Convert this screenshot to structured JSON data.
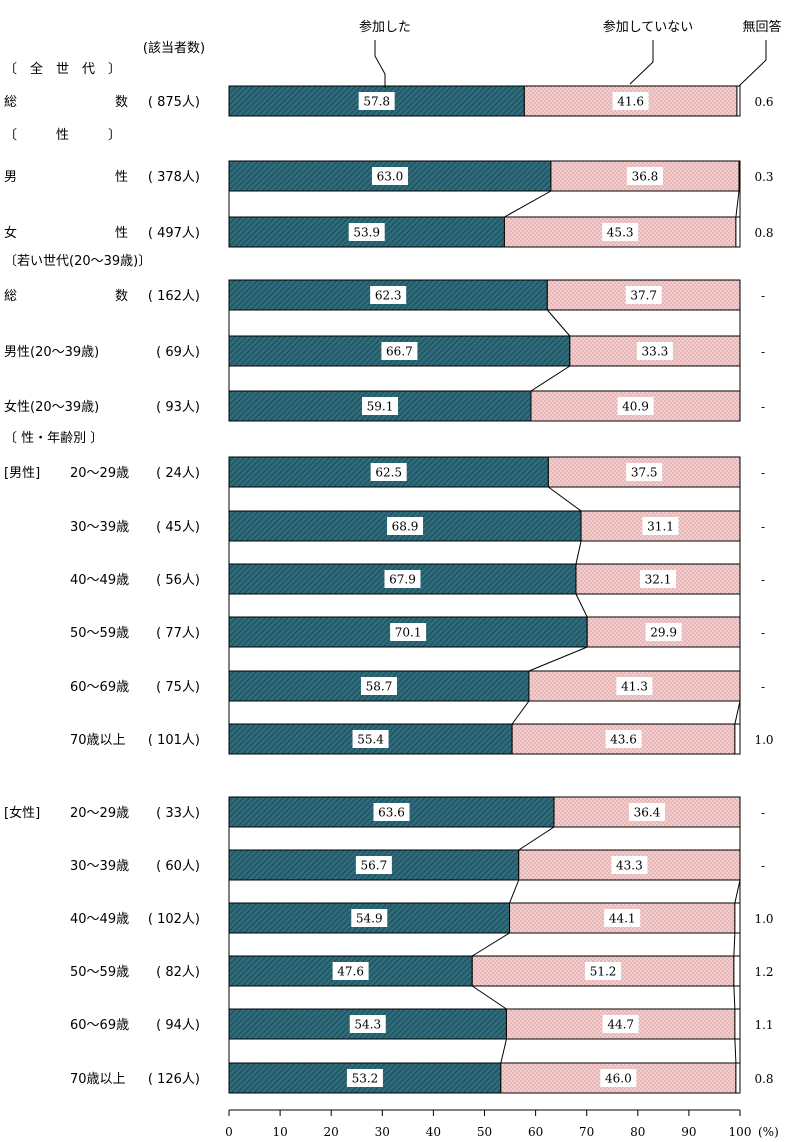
{
  "chart_data": {
    "type": "bar",
    "stacked": "percent",
    "legend": {
      "participated": "参加した",
      "not_participated": "参加していない",
      "no_answer": "無回答"
    },
    "count_header": "(該当者数)",
    "percent_unit": "(%)",
    "xlim": [
      0,
      100
    ],
    "x_ticks": [
      0,
      10,
      20,
      30,
      40,
      50,
      60,
      70,
      80,
      90,
      100
    ],
    "no_answer_dash": "-",
    "colors": {
      "participated": "#2f6b7a",
      "not_participated": "#f6cccc",
      "no_answer": "#ffffff",
      "border": "#000000"
    },
    "sections": [
      {
        "id": "all",
        "header": "〔　全　世　代　〕",
        "rows": [
          {
            "id": "all-total",
            "label_left": "総",
            "label_right": "数",
            "count": "( 875人)",
            "values": [
              57.8,
              41.6,
              0.6
            ],
            "labels": [
              "57.8",
              "41.6",
              "0.6"
            ]
          }
        ]
      },
      {
        "id": "sex",
        "header": "〔　　　性　　　〕",
        "rows": [
          {
            "id": "sex-male",
            "label_left": "男",
            "label_right": "性",
            "count": "( 378人)",
            "values": [
              63.0,
              36.8,
              0.3
            ],
            "labels": [
              "63.0",
              "36.8",
              "0.3"
            ]
          },
          {
            "id": "sex-female",
            "label_left": "女",
            "label_right": "性",
            "count": "( 497人)",
            "values": [
              53.9,
              45.3,
              0.8
            ],
            "labels": [
              "53.9",
              "45.3",
              "0.8"
            ]
          }
        ]
      },
      {
        "id": "young",
        "header": "〔若い世代(20～39歳)〕",
        "rows": [
          {
            "id": "young-total",
            "label_left": "総",
            "label_right": "数",
            "count": "( 162人)",
            "values": [
              62.3,
              37.7,
              0
            ],
            "labels": [
              "62.3",
              "37.7",
              "-"
            ]
          },
          {
            "id": "young-male",
            "label_left": "男性(20～39歳)",
            "label_right": "",
            "count": "(  69人)",
            "values": [
              66.7,
              33.3,
              0
            ],
            "labels": [
              "66.7",
              "33.3",
              "-"
            ]
          },
          {
            "id": "young-female",
            "label_left": "女性(20～39歳)",
            "label_right": "",
            "count": "(  93人)",
            "values": [
              59.1,
              40.9,
              0
            ],
            "labels": [
              "59.1",
              "40.9",
              "-"
            ]
          }
        ]
      },
      {
        "id": "male-age",
        "header": "〔 性・年齢別 〕",
        "group": "[男性]",
        "rows": [
          {
            "id": "m-20",
            "label_left": "20～29歳",
            "label_right": "",
            "count": "(  24人)",
            "values": [
              62.5,
              37.5,
              0
            ],
            "labels": [
              "62.5",
              "37.5",
              "-"
            ]
          },
          {
            "id": "m-30",
            "label_left": "30～39歳",
            "label_right": "",
            "count": "(  45人)",
            "values": [
              68.9,
              31.1,
              0
            ],
            "labels": [
              "68.9",
              "31.1",
              "-"
            ]
          },
          {
            "id": "m-40",
            "label_left": "40～49歳",
            "label_right": "",
            "count": "(  56人)",
            "values": [
              67.9,
              32.1,
              0
            ],
            "labels": [
              "67.9",
              "32.1",
              "-"
            ]
          },
          {
            "id": "m-50",
            "label_left": "50～59歳",
            "label_right": "",
            "count": "(  77人)",
            "values": [
              70.1,
              29.9,
              0
            ],
            "labels": [
              "70.1",
              "29.9",
              "-"
            ]
          },
          {
            "id": "m-60",
            "label_left": "60～69歳",
            "label_right": "",
            "count": "(  75人)",
            "values": [
              58.7,
              41.3,
              0
            ],
            "labels": [
              "58.7",
              "41.3",
              "-"
            ]
          },
          {
            "id": "m-70",
            "label_left": "70歳以上",
            "label_right": "",
            "count": "( 101人)",
            "values": [
              55.4,
              43.6,
              1.0
            ],
            "labels": [
              "55.4",
              "43.6",
              "1.0"
            ]
          }
        ]
      },
      {
        "id": "female-age",
        "header": "",
        "group": "[女性]",
        "rows": [
          {
            "id": "f-20",
            "label_left": "20～29歳",
            "label_right": "",
            "count": "(  33人)",
            "values": [
              63.6,
              36.4,
              0
            ],
            "labels": [
              "63.6",
              "36.4",
              "-"
            ]
          },
          {
            "id": "f-30",
            "label_left": "30～39歳",
            "label_right": "",
            "count": "(  60人)",
            "values": [
              56.7,
              43.3,
              0
            ],
            "labels": [
              "56.7",
              "43.3",
              "-"
            ]
          },
          {
            "id": "f-40",
            "label_left": "40～49歳",
            "label_right": "",
            "count": "( 102人)",
            "values": [
              54.9,
              44.1,
              1.0
            ],
            "labels": [
              "54.9",
              "44.1",
              "1.0"
            ]
          },
          {
            "id": "f-50",
            "label_left": "50～59歳",
            "label_right": "",
            "count": "(  82人)",
            "values": [
              47.6,
              51.2,
              1.2
            ],
            "labels": [
              "47.6",
              "51.2",
              "1.2"
            ]
          },
          {
            "id": "f-60",
            "label_left": "60～69歳",
            "label_right": "",
            "count": "(  94人)",
            "values": [
              54.3,
              44.7,
              1.1
            ],
            "labels": [
              "54.3",
              "44.7",
              "1.1"
            ]
          },
          {
            "id": "f-70",
            "label_left": "70歳以上",
            "label_right": "",
            "count": "( 126人)",
            "values": [
              53.2,
              46.0,
              0.8
            ],
            "labels": [
              "53.2",
              "46.0",
              "0.8"
            ]
          }
        ]
      }
    ]
  }
}
